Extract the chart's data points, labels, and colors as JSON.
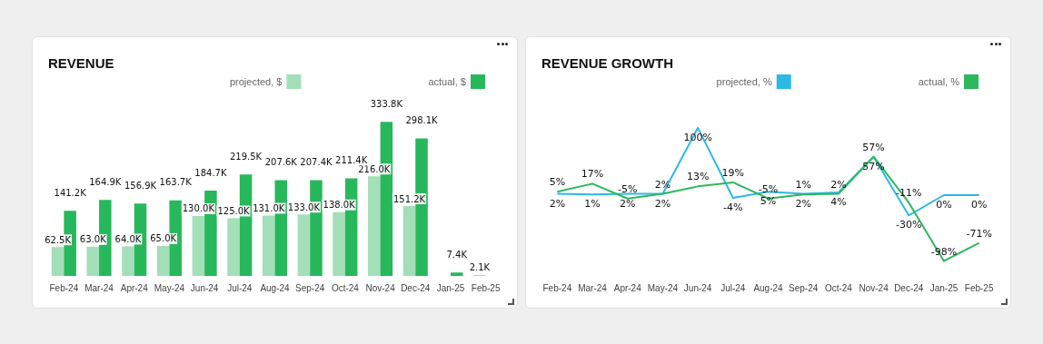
{
  "chart_data": [
    {
      "type": "bar",
      "title": "REVENUE",
      "categories": [
        "Feb-24",
        "Mar-24",
        "Apr-24",
        "May-24",
        "Jun-24",
        "Jul-24",
        "Aug-24",
        "Sep-24",
        "Oct-24",
        "Nov-24",
        "Dec-24",
        "Jan-25",
        "Feb-25"
      ],
      "series": [
        {
          "name": "projected, $",
          "color": "#a3dfb8",
          "values": [
            62.5,
            63.0,
            64.0,
            65.0,
            130.0,
            125.0,
            131.0,
            133.0,
            138.0,
            216.0,
            151.2,
            null,
            2.1
          ],
          "value_labels": [
            "62.5K",
            "63.0K",
            "64.0K",
            "65.0K",
            "130.0K",
            "125.0K",
            "131.0K",
            "133.0K",
            "138.0K",
            "216.0K",
            "151.2K",
            null,
            "2.1K"
          ]
        },
        {
          "name": "actual, $",
          "color": "#27b85c",
          "values": [
            141.2,
            164.9,
            156.9,
            163.7,
            184.7,
            219.5,
            207.6,
            207.4,
            211.4,
            333.8,
            298.1,
            7.4,
            null
          ],
          "value_labels": [
            "141.2K",
            "164.9K",
            "156.9K",
            "163.7K",
            "184.7K",
            "219.5K",
            "207.6K",
            "207.4K",
            "211.4K",
            "333.8K",
            "298.1K",
            "7.4K",
            null
          ]
        }
      ],
      "legend": "top right",
      "grid": false,
      "tick_labels": "x"
    },
    {
      "type": "line",
      "title": "REVENUE GROWTH",
      "categories": [
        "Feb-24",
        "Mar-24",
        "Apr-24",
        "May-24",
        "Jun-24",
        "Jul-24",
        "Aug-24",
        "Sep-24",
        "Oct-24",
        "Nov-24",
        "Dec-24",
        "Jan-25",
        "Feb-25"
      ],
      "series": [
        {
          "name": "projected, %",
          "color": "#2db8e6",
          "values": [
            2,
            1,
            2,
            2,
            100,
            -4,
            5,
            2,
            4,
            57,
            -30,
            0,
            0
          ],
          "value_labels": [
            "2%",
            "1%",
            "2%",
            "2%",
            "100%",
            "-4%",
            "5%",
            "2%",
            "4%",
            "57%",
            "-30%",
            "0%",
            "0%"
          ]
        },
        {
          "name": "actual, %",
          "color": "#2cb85c",
          "values": [
            5,
            17,
            -5,
            2,
            13,
            19,
            -5,
            1,
            2,
            57,
            -11,
            -98,
            -71
          ],
          "value_labels": [
            "5%",
            "17%",
            "-5%",
            "2%",
            "13%",
            "19%",
            "-5%",
            "1%",
            "2%",
            "57%",
            "-11%",
            "-98%",
            "-71%"
          ]
        }
      ],
      "legend": "top right",
      "grid": false,
      "marker": "none",
      "line_style": "solid",
      "tick_labels": "x"
    }
  ]
}
